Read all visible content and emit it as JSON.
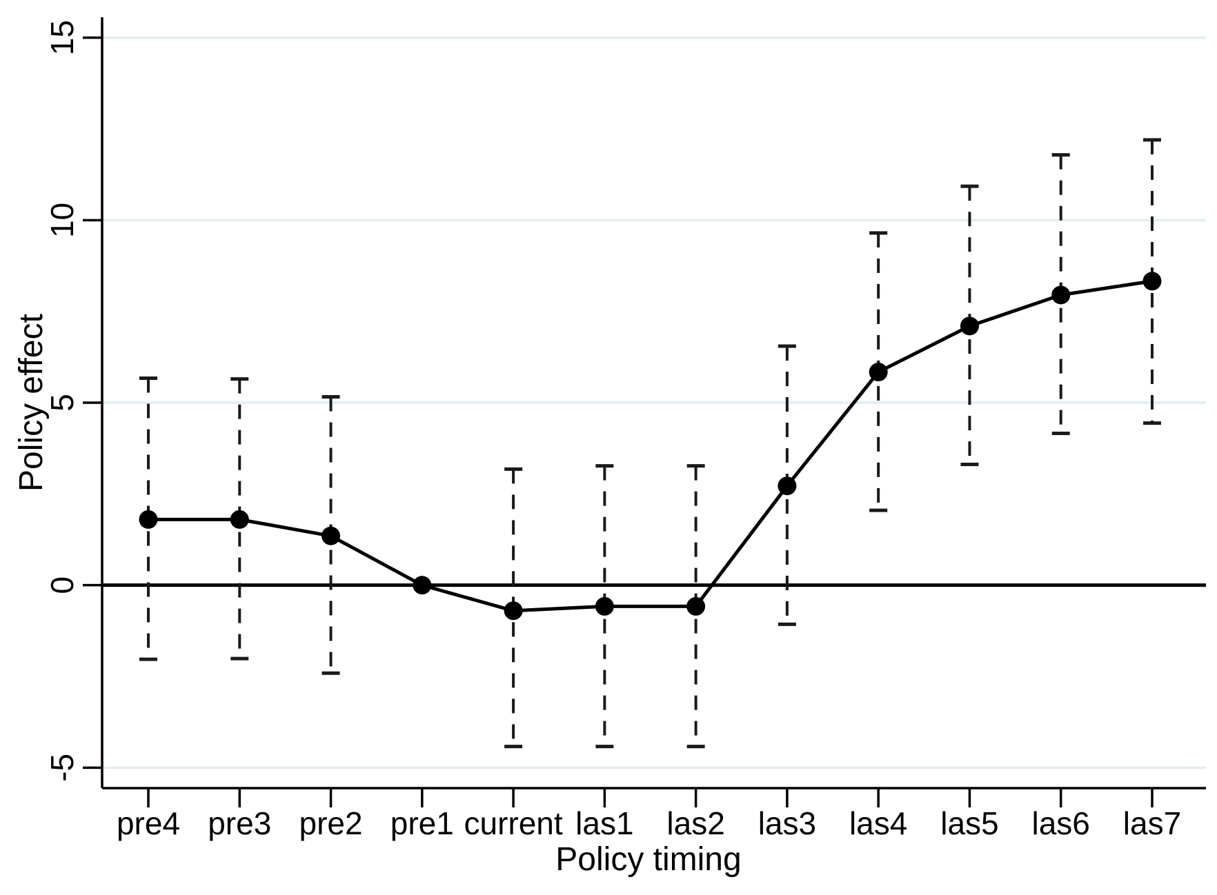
{
  "figure": {
    "background": "#ffffff"
  },
  "chart_data": {
    "type": "line",
    "title": "",
    "xlabel": "Policy timing",
    "ylabel": "Policy effect",
    "categories": [
      "pre4",
      "pre3",
      "pre2",
      "pre1",
      "current",
      "las1",
      "las2",
      "las3",
      "las4",
      "las5",
      "las6",
      "las7"
    ],
    "series": [
      {
        "name": "Policy effect point estimate",
        "values": [
          1.8,
          1.8,
          1.35,
          0.0,
          -0.7,
          -0.58,
          -0.58,
          2.72,
          5.84,
          7.1,
          7.95,
          8.33
        ]
      }
    ],
    "ci_low": [
      -2.03,
      -2.01,
      -2.41,
      null,
      -4.42,
      -4.42,
      -4.42,
      -1.07,
      2.05,
      3.31,
      4.16,
      4.44
    ],
    "ci_high": [
      5.67,
      5.65,
      5.16,
      null,
      3.18,
      3.27,
      3.27,
      6.55,
      9.65,
      10.93,
      11.79,
      12.2
    ],
    "yticks": [
      -5,
      0,
      5,
      10,
      15
    ],
    "ylim": [
      -5.56,
      15.56
    ],
    "zero_reference_line": 0,
    "grid": "horizontal-light",
    "legend": "none",
    "marker": "filled-circle",
    "ci_style": "dashed-with-caps",
    "colors": {
      "line": "#000000",
      "marker": "#000000",
      "error_bar": "#1a1a1a",
      "gridline": "#e4edf0",
      "axis": "#000000",
      "zero_line": "#000000"
    }
  }
}
